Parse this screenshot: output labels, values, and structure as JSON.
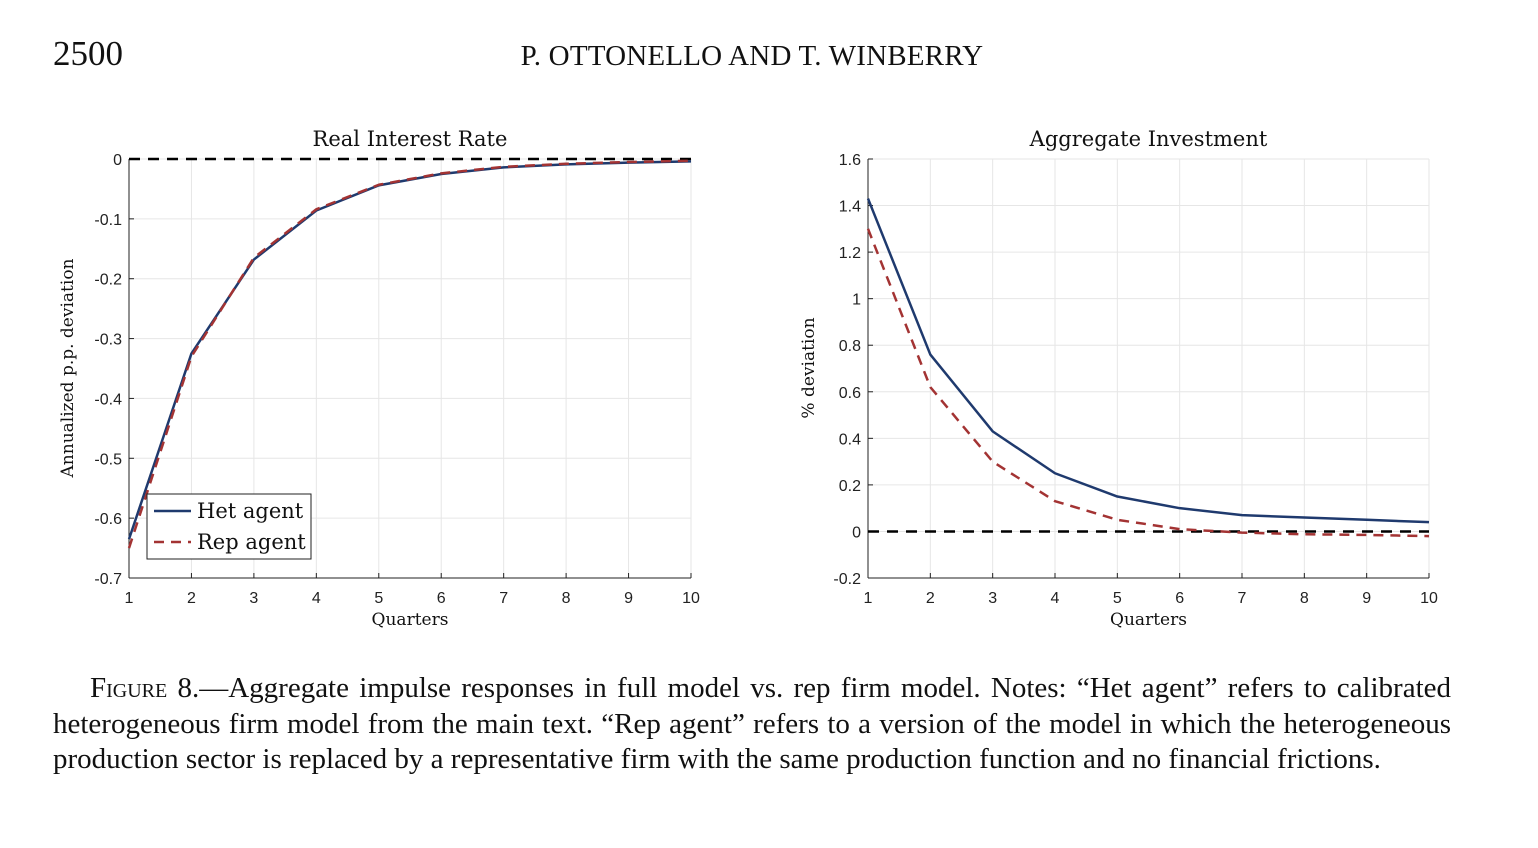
{
  "header": {
    "page_number": "2500",
    "authors": "P. OTTONELLO AND T. WINBERRY"
  },
  "chart_data": [
    {
      "type": "line",
      "title": "Real Interest Rate",
      "xlabel": "Quarters",
      "ylabel": "Annualized p.p. deviation",
      "xlim": [
        1,
        10
      ],
      "ylim": [
        -0.7,
        0
      ],
      "xticks": [
        1,
        2,
        3,
        4,
        5,
        6,
        7,
        8,
        9,
        10
      ],
      "yticks": [
        0,
        -0.1,
        -0.2,
        -0.3,
        -0.4,
        -0.5,
        -0.6,
        -0.7
      ],
      "ytick_labels": [
        "0",
        "-0.1",
        "-0.2",
        "-0.3",
        "-0.4",
        "-0.5",
        "-0.6",
        "-0.7"
      ],
      "grid": true,
      "legend": "bottom-left",
      "x": [
        1,
        2,
        3,
        4,
        5,
        6,
        7,
        8,
        9,
        10
      ],
      "series": [
        {
          "name": "Het agent",
          "color": "#1f3a6e",
          "style": "solid",
          "values": [
            -0.635,
            -0.325,
            -0.168,
            -0.086,
            -0.044,
            -0.025,
            -0.014,
            -0.009,
            -0.006,
            -0.004
          ]
        },
        {
          "name": "Rep agent",
          "color": "#a33333",
          "style": "dashed",
          "values": [
            -0.65,
            -0.33,
            -0.165,
            -0.084,
            -0.043,
            -0.024,
            -0.013,
            -0.008,
            -0.005,
            -0.003
          ]
        }
      ],
      "reference_line": {
        "y": 0,
        "color": "#000000",
        "style": "dashed"
      }
    },
    {
      "type": "line",
      "title": "Aggregate Investment",
      "xlabel": "Quarters",
      "ylabel": "% deviation",
      "xlim": [
        1,
        10
      ],
      "ylim": [
        -0.2,
        1.6
      ],
      "xticks": [
        1,
        2,
        3,
        4,
        5,
        6,
        7,
        8,
        9,
        10
      ],
      "yticks": [
        1.6,
        1.4,
        1.2,
        1,
        0.8,
        0.6,
        0.4,
        0.2,
        0,
        -0.2
      ],
      "ytick_labels": [
        "1.6",
        "1.4",
        "1.2",
        "1",
        "0.8",
        "0.6",
        "0.4",
        "0.2",
        "0",
        "-0.2"
      ],
      "grid": true,
      "x": [
        1,
        2,
        3,
        4,
        5,
        6,
        7,
        8,
        9,
        10
      ],
      "series": [
        {
          "name": "Het agent",
          "color": "#1f3a6e",
          "style": "solid",
          "values": [
            1.43,
            0.76,
            0.43,
            0.25,
            0.15,
            0.1,
            0.07,
            0.06,
            0.05,
            0.04
          ]
        },
        {
          "name": "Rep agent",
          "color": "#a33333",
          "style": "dashed",
          "values": [
            1.3,
            0.62,
            0.3,
            0.13,
            0.05,
            0.01,
            -0.005,
            -0.012,
            -0.015,
            -0.02
          ]
        }
      ],
      "reference_line": {
        "y": 0,
        "color": "#000000",
        "style": "dashed"
      }
    }
  ],
  "caption": {
    "label": "Figure 8.",
    "text": "—Aggregate impulse responses in full model vs. rep firm model. Notes: “Het agent” refers to calibrated heterogeneous firm model from the main text. “Rep agent” refers to a version of the model in which the heterogeneous production sector is replaced by a representative firm with the same production function and no financial frictions."
  }
}
